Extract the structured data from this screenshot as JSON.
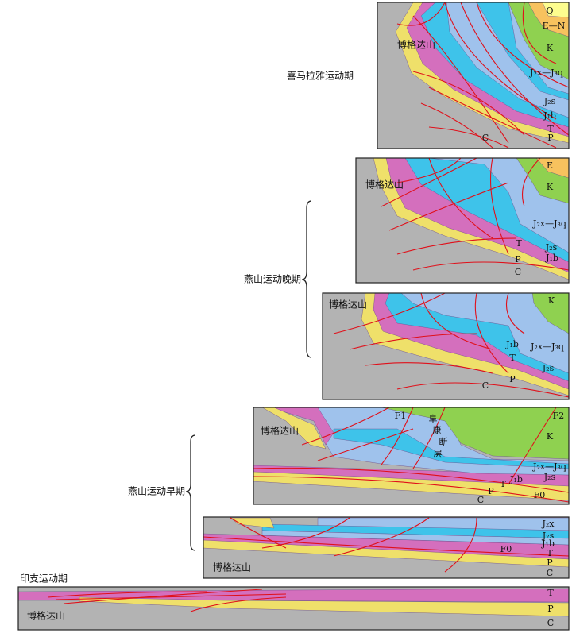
{
  "stages": [
    {
      "label": "喜马拉雅运动期"
    },
    {
      "label": "燕山运动晚期"
    },
    {
      "label": "燕山运动早期"
    },
    {
      "label": "印支运动期"
    }
  ],
  "panels": [
    {
      "mountain": "博格达山",
      "strata": [
        "Q",
        "E—N",
        "K",
        "J₂x—J₃q",
        "J₂s",
        "J₁b",
        "T",
        "P",
        "C"
      ]
    },
    {
      "mountain": "博格达山",
      "strata": [
        "E",
        "K",
        "J₂x—J₃q",
        "T",
        "J₂s",
        "P",
        "J₁b",
        "C"
      ]
    },
    {
      "mountain": "博格达山",
      "strata": [
        "K",
        "J₁b",
        "J₂x—J₃q",
        "T",
        "J₂s",
        "P",
        "C"
      ]
    },
    {
      "mountain": "博格达山",
      "faults": [
        "F1",
        "F2",
        "F0"
      ],
      "fault_name": [
        "阜",
        "康",
        "断",
        "层"
      ],
      "strata": [
        "K",
        "J₂x—J₃q",
        "J₂s",
        "J₁b",
        "T",
        "P",
        "C"
      ]
    },
    {
      "mountain": "博格达山",
      "faults": [
        "F0"
      ],
      "strata": [
        "J₂x",
        "J₂s",
        "J₁b",
        "T",
        "P",
        "C"
      ]
    },
    {
      "mountain": "博格达山",
      "strata": [
        "T",
        "P",
        "C"
      ]
    }
  ]
}
